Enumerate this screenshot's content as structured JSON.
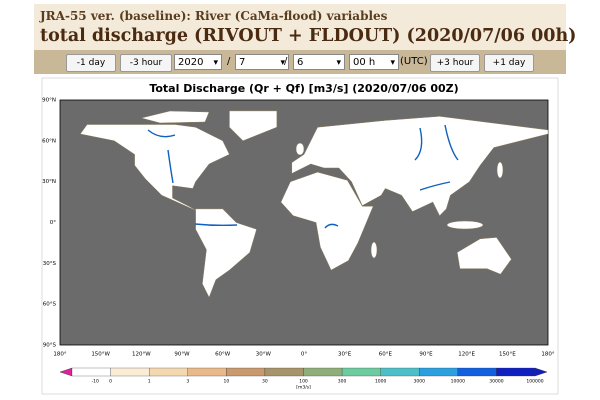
{
  "header": {
    "subtitle": "JRA-55 ver. (baseline): River (CaMa-flood) variables",
    "title": "total discharge (RIVOUT + FLDOUT) (2020/07/06 00h)"
  },
  "controls": {
    "back_buttons": [
      "-1 day",
      "-3 hour"
    ],
    "year": "2020",
    "separator": "/",
    "month": "7",
    "day": "6",
    "hour": "00 h",
    "timezone": "(UTC)",
    "forward_buttons": [
      "+3 hour",
      "+1 day"
    ]
  },
  "map": {
    "title": "Total Discharge (Qr + Qf) [m3/s] (2020/07/06 00Z)",
    "lat_labels": [
      "90°N",
      "60°N",
      "30°N",
      "0°",
      "30°S",
      "60°S",
      "90°S"
    ],
    "lon_labels": [
      "180°",
      "150°W",
      "120°W",
      "90°W",
      "60°W",
      "30°W",
      "0°",
      "30°E",
      "60°E",
      "90°E",
      "120°E",
      "150°E",
      "180°"
    ],
    "colorbar": {
      "labels": [
        "-10",
        "0",
        "1",
        "3",
        "10",
        "30",
        "100",
        "300",
        "1000",
        "3000",
        "10000",
        "30000",
        "100000"
      ],
      "unit": "[m3/s]"
    }
  }
}
